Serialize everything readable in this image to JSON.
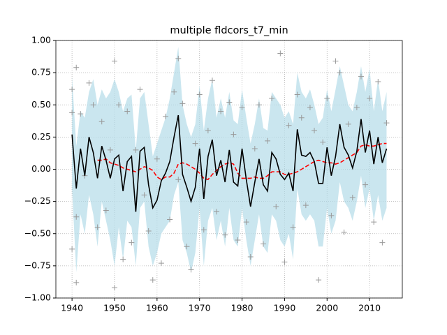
{
  "chart_data": {
    "type": "line",
    "title": "multiple fldcors_t7_min",
    "x": [
      1940,
      1941,
      1942,
      1943,
      1944,
      1945,
      1946,
      1947,
      1948,
      1949,
      1950,
      1951,
      1952,
      1953,
      1954,
      1955,
      1956,
      1957,
      1958,
      1959,
      1960,
      1961,
      1962,
      1963,
      1964,
      1965,
      1966,
      1967,
      1968,
      1969,
      1970,
      1971,
      1972,
      1973,
      1974,
      1975,
      1976,
      1977,
      1978,
      1979,
      1980,
      1981,
      1982,
      1983,
      1984,
      1985,
      1986,
      1987,
      1988,
      1989,
      1990,
      1991,
      1992,
      1993,
      1994,
      1995,
      1996,
      1997,
      1998,
      1999,
      2000,
      2001,
      2002,
      2003,
      2004,
      2005,
      2006,
      2007,
      2008,
      2009,
      2010,
      2011,
      2012,
      2013,
      2014
    ],
    "band": {
      "color": "#add8e6",
      "upper": [
        0.72,
        0.18,
        0.45,
        0.4,
        0.6,
        0.7,
        0.5,
        0.62,
        0.55,
        0.6,
        0.7,
        0.6,
        0.45,
        0.55,
        0.58,
        0.15,
        0.55,
        0.6,
        0.35,
        0.1,
        0.2,
        0.3,
        0.4,
        0.55,
        0.75,
        0.95,
        0.5,
        0.35,
        0.25,
        0.35,
        0.65,
        0.3,
        0.55,
        0.7,
        0.4,
        0.55,
        0.4,
        0.6,
        0.38,
        0.35,
        0.62,
        0.4,
        0.2,
        0.35,
        0.55,
        0.32,
        0.3,
        0.6,
        0.55,
        0.5,
        0.4,
        0.45,
        0.35,
        0.75,
        0.6,
        0.55,
        0.62,
        0.5,
        0.35,
        0.4,
        0.62,
        0.45,
        0.62,
        0.8,
        0.65,
        0.5,
        0.45,
        0.6,
        0.8,
        0.6,
        0.78,
        0.45,
        0.7,
        0.45,
        0.6
      ],
      "lower": [
        -0.15,
        -0.8,
        -0.35,
        -0.5,
        -0.2,
        -0.35,
        -0.6,
        -0.25,
        -0.4,
        -0.55,
        -0.75,
        -0.45,
        -0.7,
        -0.4,
        -0.45,
        -0.75,
        -0.3,
        -0.25,
        -0.6,
        -0.75,
        -0.65,
        -0.5,
        -0.45,
        -0.4,
        -0.2,
        -0.1,
        -0.55,
        -0.65,
        -0.8,
        -0.65,
        -0.3,
        -0.75,
        -0.4,
        -0.3,
        -0.55,
        -0.4,
        -0.6,
        -0.3,
        -0.55,
        -0.6,
        -0.3,
        -0.55,
        -0.75,
        -0.55,
        -0.35,
        -0.6,
        -0.65,
        -0.35,
        -0.4,
        -0.55,
        -0.6,
        -0.5,
        -0.7,
        -0.15,
        -0.35,
        -0.4,
        -0.35,
        -0.4,
        -0.6,
        -0.6,
        -0.3,
        -0.5,
        -0.4,
        -0.1,
        -0.25,
        -0.3,
        -0.4,
        -0.25,
        -0.05,
        -0.3,
        -0.15,
        -0.4,
        -0.2,
        -0.4,
        -0.3
      ]
    },
    "scatter": {
      "color": "#999999",
      "x": [
        1940,
        1940,
        1940,
        1941,
        1941,
        1941,
        1942,
        1943,
        1944,
        1945,
        1946,
        1947,
        1948,
        1949,
        1950,
        1950,
        1951,
        1952,
        1953,
        1954,
        1955,
        1956,
        1957,
        1958,
        1959,
        1960,
        1961,
        1962,
        1963,
        1964,
        1965,
        1965,
        1966,
        1967,
        1968,
        1969,
        1970,
        1971,
        1972,
        1973,
        1974,
        1975,
        1976,
        1977,
        1978,
        1979,
        1980,
        1981,
        1982,
        1983,
        1984,
        1985,
        1986,
        1987,
        1988,
        1989,
        1990,
        1991,
        1992,
        1993,
        1994,
        1995,
        1996,
        1997,
        1998,
        1999,
        2000,
        2001,
        2002,
        2003,
        2004,
        2005,
        2006,
        2007,
        2008,
        2009,
        2010,
        2011,
        2012,
        2013,
        2014
      ],
      "y": [
        0.62,
        0.44,
        -0.62,
        0.79,
        -0.88,
        -0.37,
        0.43,
        -0.05,
        0.67,
        0.5,
        -0.45,
        0.37,
        -0.32,
        0.15,
        -0.92,
        0.84,
        0.5,
        -0.7,
        0.45,
        -0.57,
        0.15,
        0.62,
        -0.2,
        -0.48,
        -0.86,
        0.08,
        -0.73,
        0.41,
        -0.39,
        0.6,
        0.86,
        -0.08,
        0.51,
        -0.6,
        -0.78,
        0.2,
        0.58,
        -0.47,
        0.3,
        0.69,
        -0.33,
        0.45,
        -0.51,
        0.52,
        0.27,
        -0.55,
        0.48,
        -0.41,
        -0.68,
        0.16,
        0.5,
        -0.58,
        0.22,
        0.55,
        -0.29,
        0.9,
        -0.72,
        0.34,
        -0.45,
        0.58,
        0.4,
        -0.28,
        0.48,
        0.3,
        -0.86,
        0.21,
        0.55,
        -0.36,
        0.84,
        0.75,
        -0.49,
        0.35,
        -0.22,
        0.48,
        0.72,
        -0.12,
        0.55,
        -0.41,
        0.68,
        -0.57,
        0.36
      ]
    },
    "series": [
      {
        "color": "#ff0000",
        "dashed": true,
        "values": [
          null,
          null,
          null,
          null,
          null,
          null,
          0.07,
          0.07,
          0.08,
          0.05,
          0.04,
          0.03,
          0.01,
          0.0,
          -0.01,
          -0.02,
          0.0,
          0.02,
          0.01,
          -0.01,
          -0.06,
          -0.08,
          -0.06,
          -0.06,
          -0.03,
          0.04,
          0.05,
          0.04,
          0.02,
          0.0,
          -0.03,
          -0.07,
          -0.08,
          -0.04,
          -0.01,
          0.02,
          0.04,
          0.05,
          0.04,
          -0.03,
          -0.07,
          -0.07,
          -0.07,
          -0.06,
          -0.07,
          -0.07,
          -0.05,
          -0.02,
          -0.02,
          -0.02,
          -0.04,
          -0.04,
          -0.03,
          -0.02,
          0.0,
          0.02,
          0.04,
          0.06,
          0.07,
          0.06,
          0.05,
          0.05,
          0.04,
          0.05,
          0.07,
          0.09,
          0.11,
          0.13,
          0.18,
          0.19,
          0.18,
          0.18,
          0.19,
          0.2,
          0.2
        ]
      },
      {
        "color": "#000000",
        "dashed": false,
        "values": [
          0.27,
          -0.15,
          0.16,
          -0.05,
          0.25,
          0.13,
          -0.07,
          0.18,
          0.07,
          -0.07,
          0.08,
          0.11,
          -0.17,
          0.06,
          0.1,
          -0.33,
          0.14,
          0.17,
          -0.12,
          -0.3,
          -0.24,
          -0.09,
          -0.03,
          0.06,
          0.25,
          0.42,
          -0.04,
          -0.14,
          -0.25,
          -0.14,
          0.16,
          -0.23,
          0.1,
          0.23,
          -0.05,
          0.07,
          -0.1,
          0.15,
          -0.1,
          -0.13,
          0.16,
          -0.08,
          -0.29,
          -0.1,
          0.08,
          -0.12,
          -0.17,
          0.13,
          0.08,
          -0.04,
          -0.08,
          -0.03,
          -0.17,
          0.31,
          0.11,
          0.1,
          0.13,
          0.06,
          -0.11,
          -0.11,
          0.17,
          -0.05,
          0.1,
          0.35,
          0.17,
          0.11,
          0.01,
          0.14,
          0.39,
          0.13,
          0.3,
          0.04,
          0.25,
          0.05,
          0.16
        ]
      }
    ],
    "xlim": [
      1936.2,
      2017.7
    ],
    "ylim": [
      -1,
      1
    ],
    "xticks": [
      1940,
      1950,
      1960,
      1970,
      1980,
      1990,
      2000,
      2010
    ],
    "yticks": [
      {
        "value": -1,
        "label": "−1.00"
      },
      {
        "value": -0.75,
        "label": "−0.75"
      },
      {
        "value": -0.5,
        "label": "−0.50"
      },
      {
        "value": -0.25,
        "label": "−0.25"
      },
      {
        "value": 0,
        "label": "0.00"
      },
      {
        "value": 0.25,
        "label": "0.25"
      },
      {
        "value": 0.5,
        "label": "0.50"
      },
      {
        "value": 0.75,
        "label": "0.75"
      },
      {
        "value": 1,
        "label": "1.00"
      }
    ],
    "grid": true
  }
}
